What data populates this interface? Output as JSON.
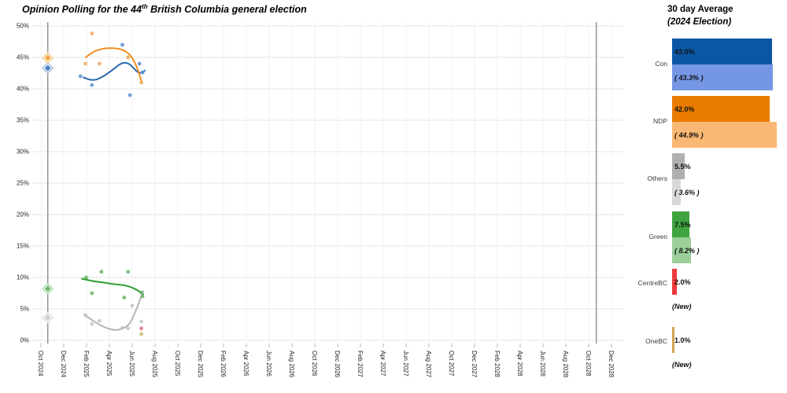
{
  "title": {
    "prefix": "Opinion Polling for the 44",
    "ordinal": "th",
    "suffix": " British Columbia general election"
  },
  "legend": {
    "title": "30 day Average",
    "subtitle": "(2024 Election)",
    "parties": [
      {
        "name": "Con",
        "avg_label": "43.0%",
        "avg_value": 43.0,
        "prev_label": "( 43.3% )",
        "prev_value": 43.3,
        "color_avg": "#0b57a5",
        "color_prev": "#7496e4"
      },
      {
        "name": "NDP",
        "avg_label": "42.0%",
        "avg_value": 42.0,
        "prev_label": "( 44.9% )",
        "prev_value": 44.9,
        "color_avg": "#e97c00",
        "color_prev": "#f9b873"
      },
      {
        "name": "Others",
        "avg_label": "5.5%",
        "avg_value": 5.5,
        "prev_label": "( 3.6% )",
        "prev_value": 3.6,
        "color_avg": "#b0b0b0",
        "color_prev": "#d8d8d8"
      },
      {
        "name": "Green",
        "avg_label": "7.5%",
        "avg_value": 7.5,
        "prev_label": "( 8.2% )",
        "prev_value": 8.2,
        "color_avg": "#3fa33f",
        "color_prev": "#9ccf9a"
      },
      {
        "name": "CentreBC",
        "avg_label": "2.0%",
        "avg_value": 2.0,
        "prev_label": "(New)",
        "prev_value": null,
        "color_avg": "#ef3b3c",
        "color_prev": null
      },
      {
        "name": "OneBC",
        "avg_label": "1.0%",
        "avg_value": 1.0,
        "prev_label": "(New)",
        "prev_value": null,
        "color_avg": "#d2a156",
        "color_prev": null
      }
    ]
  },
  "chart_data": {
    "type": "scatter",
    "title": "Opinion Polling for the 44th British Columbia general election",
    "grid": true,
    "election_date": "2024-10-19",
    "election_lines": [
      {
        "date": "2024-10-19"
      },
      {
        "date": "2028-10-21"
      }
    ],
    "x_axis": {
      "start": "2024-10-01",
      "months_per_tick": 2,
      "tick_labels": [
        "Oct 2024",
        "Dec 2024",
        "Feb 2025",
        "Apr 2025",
        "Jun 2025",
        "Aug 2025",
        "Oct 2025",
        "Dec 2025",
        "Feb 2026",
        "Apr 2026",
        "Jun 2026",
        "Aug 2026",
        "Oct 2026",
        "Dec 2026",
        "Feb 2027",
        "Apr 2027",
        "Jun 2027",
        "Aug 2027",
        "Oct 2027",
        "Dec 2027",
        "Feb 2028",
        "Apr 2028",
        "Jun 2028",
        "Aug 2028",
        "Oct 2028",
        "Dec 2028"
      ]
    },
    "y_axis": {
      "min": 0,
      "max": 50,
      "tick_step": 5,
      "tick_labels": [
        "0%",
        "5%",
        "10%",
        "15%",
        "20%",
        "25%",
        "30%",
        "35%",
        "40%",
        "45%",
        "50%"
      ]
    },
    "series": [
      {
        "name": "Con",
        "point_color": "#5b8fd0",
        "line_color": "#2868b0",
        "marker_fill": "#4a80c2",
        "marker_halo": "#a9c6e8",
        "election_result": 43.3,
        "points": [
          {
            "date": "2025-01-15",
            "value": 42.0
          },
          {
            "date": "2025-02-15",
            "value": 40.6
          },
          {
            "date": "2025-05-05",
            "value": 47.0
          },
          {
            "date": "2025-05-25",
            "value": 39.0
          },
          {
            "date": "2025-06-20",
            "value": 44.0
          },
          {
            "date": "2025-06-28",
            "value": 42.6
          }
        ],
        "trend": [
          {
            "date": "2025-01-23",
            "value": 41.8
          },
          {
            "date": "2025-02-09",
            "value": 41.4
          },
          {
            "date": "2025-02-26",
            "value": 41.4
          },
          {
            "date": "2025-03-16",
            "value": 42.0
          },
          {
            "date": "2025-04-07",
            "value": 42.9
          },
          {
            "date": "2025-04-28",
            "value": 43.9
          },
          {
            "date": "2025-05-10",
            "value": 44.2
          },
          {
            "date": "2025-05-23",
            "value": 44.0
          },
          {
            "date": "2025-06-05",
            "value": 43.3
          },
          {
            "date": "2025-06-15",
            "value": 42.6
          },
          {
            "date": "2025-06-26",
            "value": 42.5
          },
          {
            "date": "2025-07-04",
            "value": 42.9
          }
        ]
      },
      {
        "name": "NDP",
        "point_color": "#f2a85c",
        "line_color": "#f08c1e",
        "marker_fill": "#f5a73f",
        "marker_halo": "#f8cf9a",
        "election_result": 44.9,
        "points": [
          {
            "date": "2025-01-28",
            "value": 44.0
          },
          {
            "date": "2025-02-15",
            "value": 48.8
          },
          {
            "date": "2025-03-05",
            "value": 44.0
          },
          {
            "date": "2025-05-20",
            "value": 45.0
          },
          {
            "date": "2025-06-25",
            "value": 41.0
          }
        ],
        "trend": [
          {
            "date": "2025-01-29",
            "value": 45.0
          },
          {
            "date": "2025-02-17",
            "value": 45.9
          },
          {
            "date": "2025-03-12",
            "value": 46.4
          },
          {
            "date": "2025-04-07",
            "value": 46.5
          },
          {
            "date": "2025-05-04",
            "value": 46.3
          },
          {
            "date": "2025-05-25",
            "value": 45.5
          },
          {
            "date": "2025-06-09",
            "value": 44.1
          },
          {
            "date": "2025-06-19",
            "value": 42.5
          },
          {
            "date": "2025-06-26",
            "value": 41.0
          }
        ]
      },
      {
        "name": "Green",
        "point_color": "#66b366",
        "line_color": "#2f9e2f",
        "marker_fill": "#6cbc6c",
        "marker_halo": "#b2dcb2",
        "election_result": 8.2,
        "points": [
          {
            "date": "2025-01-30",
            "value": 10.0
          },
          {
            "date": "2025-02-15",
            "value": 7.5
          },
          {
            "date": "2025-03-10",
            "value": 10.9
          },
          {
            "date": "2025-05-10",
            "value": 6.8
          },
          {
            "date": "2025-05-20",
            "value": 10.9
          },
          {
            "date": "2025-06-25",
            "value": 7.6
          },
          {
            "date": "2025-06-28",
            "value": 7.0
          }
        ],
        "trend": [
          {
            "date": "2025-01-19",
            "value": 9.8
          },
          {
            "date": "2025-02-17",
            "value": 9.4
          },
          {
            "date": "2025-03-16",
            "value": 9.2
          },
          {
            "date": "2025-04-15",
            "value": 8.9
          },
          {
            "date": "2025-05-10",
            "value": 8.8
          },
          {
            "date": "2025-06-01",
            "value": 8.4
          },
          {
            "date": "2025-06-17",
            "value": 7.9
          },
          {
            "date": "2025-06-30",
            "value": 7.3
          }
        ]
      },
      {
        "name": "Others",
        "point_color": "#c4c4c4",
        "line_color": "#b4b4b4",
        "marker_fill": "#cfcfcf",
        "marker_halo": "#e2e2e2",
        "election_result": 3.6,
        "points": [
          {
            "date": "2025-01-28",
            "value": 4.0
          },
          {
            "date": "2025-02-15",
            "value": 2.6
          },
          {
            "date": "2025-03-05",
            "value": 3.1
          },
          {
            "date": "2025-05-05",
            "value": 2.0
          },
          {
            "date": "2025-05-20",
            "value": 1.9
          },
          {
            "date": "2025-06-01",
            "value": 5.5
          },
          {
            "date": "2025-06-25",
            "value": 3.0
          }
        ],
        "trend": [
          {
            "date": "2025-01-25",
            "value": 4.1
          },
          {
            "date": "2025-02-13",
            "value": 3.3
          },
          {
            "date": "2025-03-04",
            "value": 2.5
          },
          {
            "date": "2025-03-25",
            "value": 1.9
          },
          {
            "date": "2025-04-15",
            "value": 1.6
          },
          {
            "date": "2025-05-06",
            "value": 1.8
          },
          {
            "date": "2025-05-23",
            "value": 2.5
          },
          {
            "date": "2025-06-05",
            "value": 3.9
          },
          {
            "date": "2025-06-15",
            "value": 5.4
          },
          {
            "date": "2025-06-24",
            "value": 6.9
          },
          {
            "date": "2025-06-30",
            "value": 7.8
          }
        ]
      },
      {
        "name": "CentreBC",
        "point_color": "#dd6e85",
        "line_color": null,
        "election_result": null,
        "points": [
          {
            "date": "2025-06-25",
            "value": 1.9
          }
        ],
        "trend": []
      },
      {
        "name": "OneBC",
        "point_color": "#c3bd72",
        "line_color": null,
        "election_result": null,
        "points": [
          {
            "date": "2025-06-25",
            "value": 1.0
          }
        ],
        "trend": []
      }
    ]
  }
}
